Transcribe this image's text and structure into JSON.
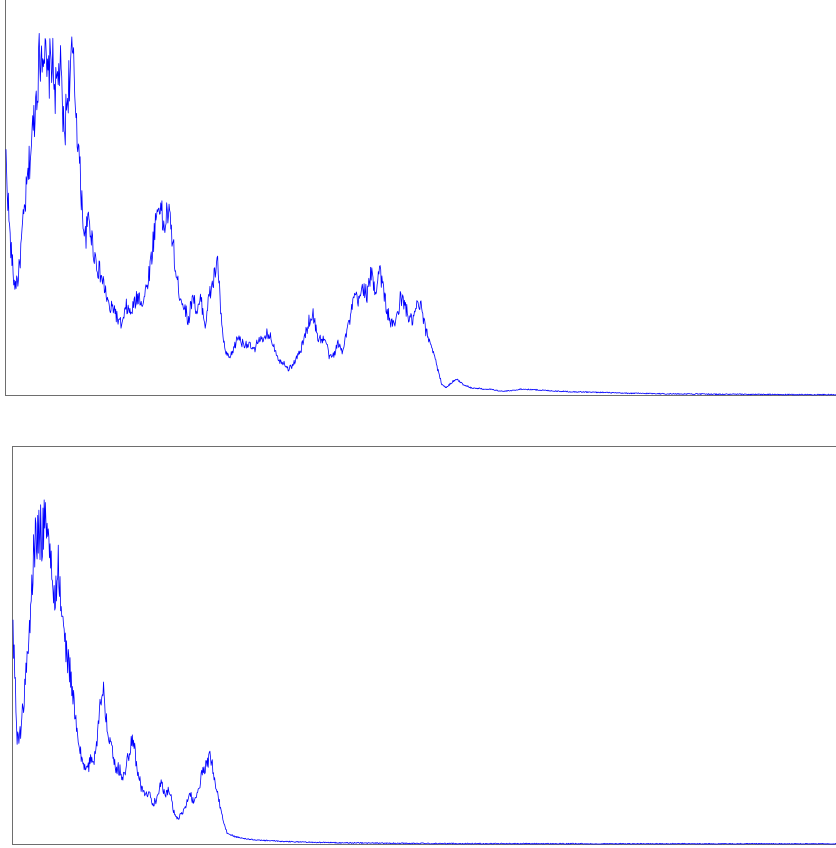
{
  "chart_data": [
    {
      "type": "line",
      "grid": false,
      "legend": "none",
      "x_range": [
        0,
        1000
      ],
      "y_range": [
        0,
        100
      ],
      "series": [
        {
          "color": "#0000ff",
          "x": [
            0,
            5,
            10,
            15,
            20,
            25,
            30,
            35,
            40,
            45,
            50,
            55,
            60,
            65,
            70,
            75,
            80,
            85,
            90,
            95,
            100,
            105,
            110,
            115,
            120,
            125,
            130,
            135,
            140,
            145,
            150,
            155,
            160,
            165,
            170,
            175,
            180,
            185,
            190,
            195,
            200,
            205,
            210,
            215,
            220,
            225,
            230,
            235,
            240,
            245,
            250,
            255,
            260,
            265,
            270,
            275,
            280,
            285,
            290,
            295,
            300,
            305,
            310,
            315,
            320,
            325,
            330,
            335,
            340,
            345,
            350,
            355,
            360,
            365,
            370,
            375,
            380,
            385,
            390,
            395,
            400,
            405,
            410,
            415,
            420,
            425,
            430,
            435,
            440,
            445,
            450,
            455,
            460,
            465,
            470,
            475,
            480,
            485,
            490,
            495,
            500,
            505,
            510,
            515,
            520,
            525,
            530,
            535,
            540,
            545,
            550,
            555,
            560,
            565,
            570,
            575,
            580,
            585,
            590,
            595,
            600,
            610,
            620,
            640,
            660,
            680,
            700,
            720,
            740,
            760,
            780,
            800,
            820,
            840,
            860,
            880,
            900,
            920,
            940,
            960,
            980,
            1000
          ],
          "y": [
            64,
            42,
            30,
            32,
            45,
            56,
            67,
            78,
            91,
            96,
            85,
            92,
            82,
            90,
            70,
            84,
            92,
            76,
            57,
            42,
            48,
            40,
            35,
            32,
            28,
            23,
            24,
            20,
            19,
            24,
            22,
            25,
            27,
            25,
            30,
            37,
            47,
            53,
            45,
            50,
            44,
            32,
            27,
            24,
            20,
            28,
            22,
            26,
            19,
            27,
            31,
            37,
            18,
            11,
            10,
            13,
            16,
            14,
            14,
            13,
            12,
            16,
            14,
            17,
            15,
            12,
            9,
            9,
            7,
            8,
            10,
            12,
            16,
            20,
            22,
            16,
            15,
            15,
            10,
            11,
            14,
            12,
            17,
            21,
            27,
            25,
            30,
            27,
            33,
            28,
            35,
            28,
            22,
            19,
            20,
            26,
            25,
            21,
            20,
            24,
            24,
            18,
            15,
            12,
            7,
            3,
            2,
            3,
            4,
            4,
            3,
            2.5,
            2,
            1.8,
            1.8,
            1.6,
            1.5,
            1.6,
            1.3,
            1.1,
            1,
            1.2,
            1.6,
            1.4,
            1.1,
            0.9,
            0.8,
            0.7,
            0.5,
            0.45,
            0.4,
            0.3,
            0.3,
            0.25,
            0.2,
            0.2,
            0.15,
            0.15,
            0.1,
            0.1,
            0.1,
            0.05
          ]
        }
      ]
    },
    {
      "type": "line",
      "grid": false,
      "legend": "none",
      "x_range": [
        0,
        1000
      ],
      "y_range": [
        0,
        100
      ],
      "series": [
        {
          "color": "#0000ff",
          "x": [
            0,
            5,
            10,
            15,
            20,
            25,
            30,
            35,
            40,
            45,
            50,
            55,
            60,
            65,
            70,
            75,
            80,
            85,
            90,
            95,
            100,
            105,
            110,
            115,
            120,
            125,
            130,
            135,
            140,
            145,
            150,
            155,
            160,
            165,
            170,
            175,
            180,
            185,
            190,
            195,
            200,
            205,
            210,
            215,
            220,
            225,
            230,
            235,
            240,
            245,
            250,
            255,
            260,
            270,
            280,
            290,
            300,
            320,
            340,
            360,
            380,
            400,
            420,
            440,
            460,
            480,
            500,
            550,
            600,
            700,
            800,
            900,
            1000
          ],
          "y": [
            60,
            28,
            32,
            44,
            58,
            78,
            86,
            84,
            92,
            77,
            66,
            76,
            60,
            52,
            46,
            36,
            26,
            22,
            20,
            23,
            24,
            36,
            41,
            32,
            27,
            21,
            20,
            18,
            24,
            30,
            22,
            16,
            13,
            14,
            11,
            12,
            17,
            13,
            15,
            9,
            7,
            8,
            10,
            14,
            11,
            15,
            19,
            22,
            24,
            18,
            12,
            7,
            3,
            2,
            1.5,
            1.2,
            1,
            0.8,
            0.6,
            0.5,
            0.4,
            0.3,
            0.3,
            0.25,
            0.2,
            0.2,
            0.15,
            0.1,
            0.1,
            0.05,
            0.05,
            0.03,
            0.02
          ]
        }
      ]
    }
  ]
}
